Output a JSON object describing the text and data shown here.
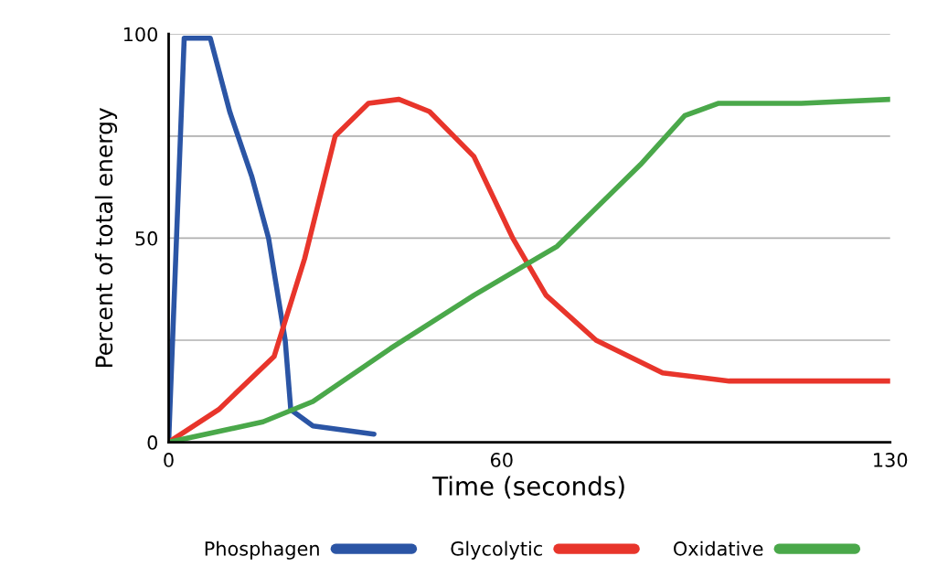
{
  "chart_data": {
    "type": "line",
    "xlabel": "Time (seconds)",
    "ylabel": "Percent of total energy",
    "xlim": [
      0,
      130
    ],
    "xticks": [
      0,
      60,
      130
    ],
    "ylim": [
      0,
      100
    ],
    "yticks": [
      0,
      {
        "value": 25,
        "label": null
      },
      50,
      {
        "value": 75,
        "label": null
      },
      100
    ],
    "grid": "y",
    "legend": "bottom",
    "line_style": "solid",
    "series": [
      {
        "name": "Phosphagen",
        "color": "#2b55a5",
        "x": [
          0,
          2.8,
          7.5,
          11,
          15,
          18,
          21,
          22,
          26,
          37
        ],
        "values": [
          0,
          99,
          99,
          81,
          65,
          50,
          25,
          8,
          4,
          2
        ]
      },
      {
        "name": "Glycolytic",
        "color": "#e8352b",
        "x": [
          0,
          9,
          19,
          24.5,
          30,
          36,
          41.5,
          47,
          55,
          62,
          68,
          77,
          89,
          101,
          114,
          130
        ],
        "values": [
          0,
          8,
          21,
          45,
          75,
          83,
          84,
          81,
          70,
          50,
          36,
          25,
          17,
          15,
          15,
          15
        ]
      },
      {
        "name": "Oxidative",
        "color": "#4aa84a",
        "x": [
          0,
          17,
          26,
          40,
          55,
          65,
          70,
          76,
          85,
          93,
          99,
          114,
          130
        ],
        "values": [
          0,
          5,
          10,
          23,
          36,
          44,
          48,
          56,
          68,
          80,
          83,
          83,
          84
        ]
      }
    ]
  }
}
